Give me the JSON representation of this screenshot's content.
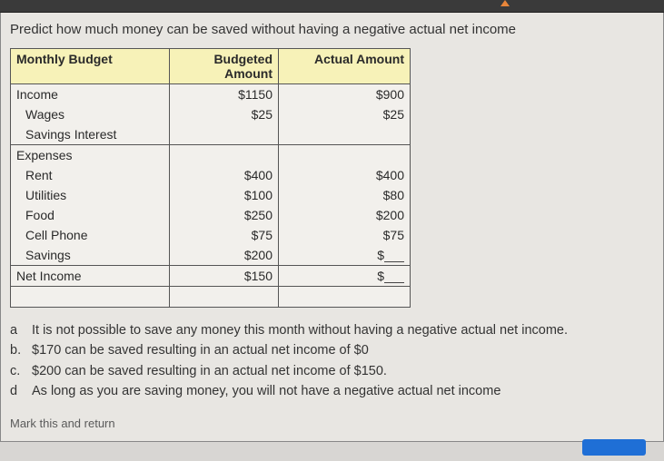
{
  "question": "Predict how much money can be saved without having a negative actual net income",
  "table": {
    "headers": {
      "c1": "Monthly Budget",
      "c2": "Budgeted Amount",
      "c3": "Actual Amount"
    },
    "rows": {
      "income": {
        "label": "Income",
        "budget": "$1150",
        "actual": "$900"
      },
      "wages": {
        "label": "Wages",
        "budget": "$25",
        "actual": "$25"
      },
      "savings_interest": {
        "label": "Savings Interest",
        "budget": "",
        "actual": ""
      },
      "expenses": {
        "label": "Expenses",
        "budget": "",
        "actual": ""
      },
      "rent": {
        "label": "Rent",
        "budget": "$400",
        "actual": "$400"
      },
      "utilities": {
        "label": "Utilities",
        "budget": "$100",
        "actual": "$80"
      },
      "food": {
        "label": "Food",
        "budget": "$250",
        "actual": "$200"
      },
      "cell": {
        "label": "Cell Phone",
        "budget": "$75",
        "actual": "$75"
      },
      "savings": {
        "label": "Savings",
        "budget": "$200",
        "actual_prefix": "$"
      },
      "net": {
        "label": "Net Income",
        "budget": "$150",
        "actual_prefix": "$"
      }
    }
  },
  "options": {
    "a": {
      "letter": "a",
      "text": "It is not possible to save any money this month without having a negative actual net income."
    },
    "b": {
      "letter": "b.",
      "text": "$170 can be saved resulting in an actual net income of $0"
    },
    "c": {
      "letter": "c.",
      "text": "$200 can be saved resulting in an actual net income of $150."
    },
    "d": {
      "letter": "d",
      "text": "As long as you are saving money, you will not have a negative actual net income"
    }
  },
  "mark": "Mark this and return"
}
